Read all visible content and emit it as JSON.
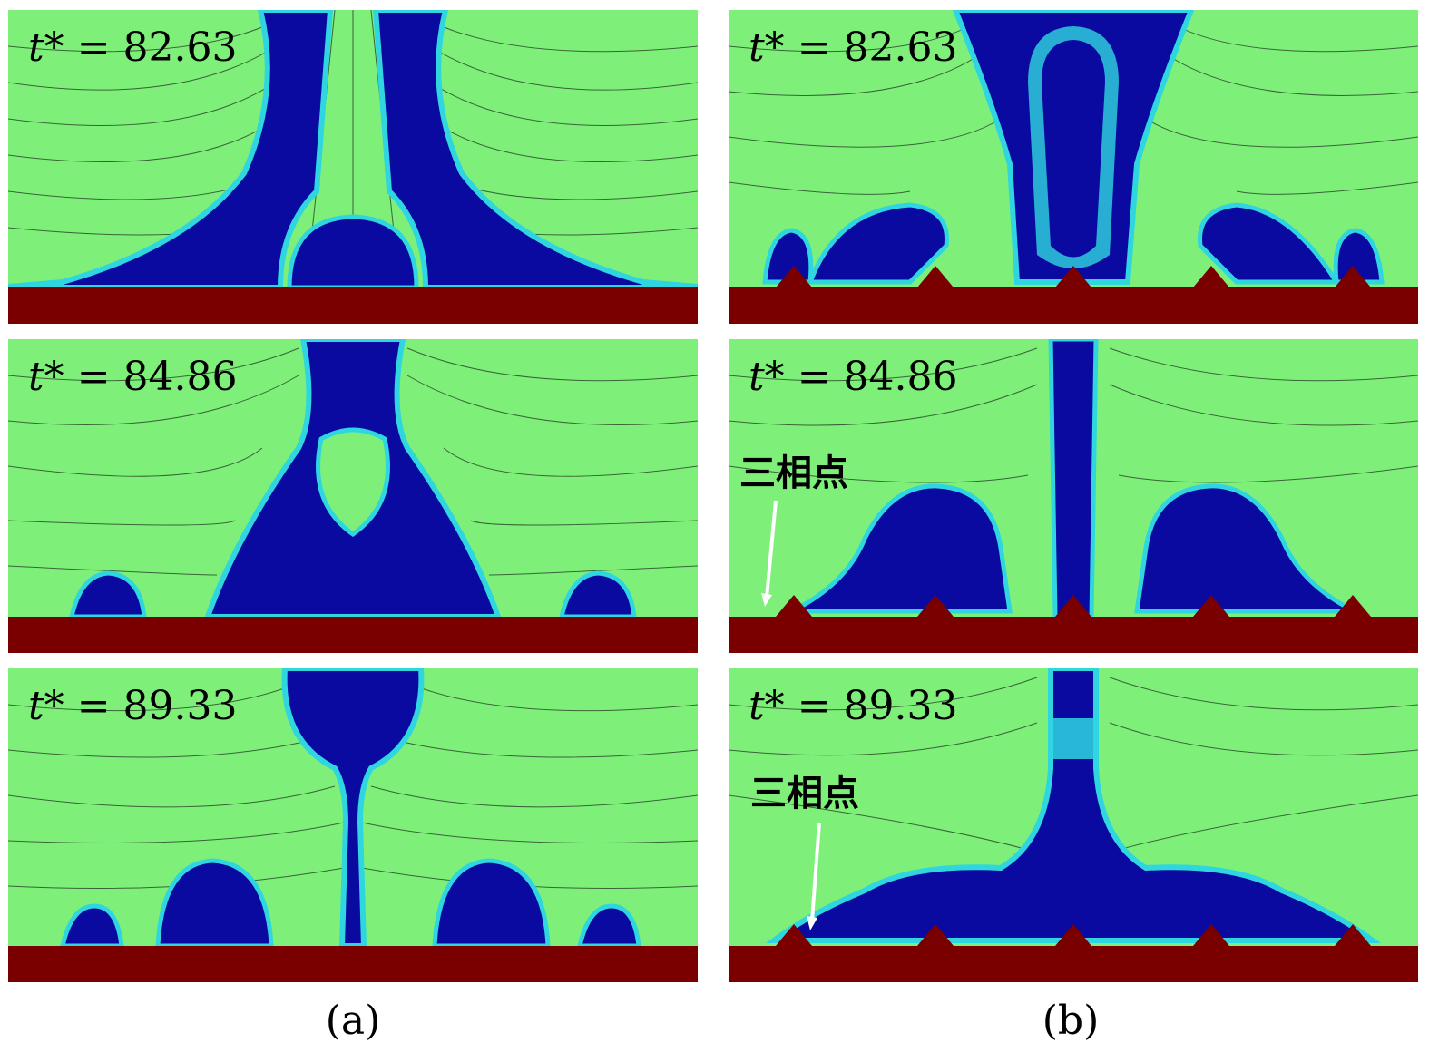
{
  "figure": {
    "columns": [
      {
        "caption": "(a)",
        "panels": [
          {
            "time_label": "t* = 82.63",
            "time_var": "t*",
            "time_value": "= 82.63",
            "annotation": ""
          },
          {
            "time_label": "t* = 84.86",
            "time_var": "t*",
            "time_value": "= 84.86",
            "annotation": ""
          },
          {
            "time_label": "t* = 89.33",
            "time_var": "t*",
            "time_value": "= 89.33",
            "annotation": ""
          }
        ]
      },
      {
        "caption": "(b)",
        "panels": [
          {
            "time_label": "t* = 82.63",
            "time_var": "t*",
            "time_value": "= 82.63",
            "annotation": ""
          },
          {
            "time_label": "t* = 84.86",
            "time_var": "t*",
            "time_value": "= 84.86",
            "annotation": "三相点"
          },
          {
            "time_label": "t* = 89.33",
            "time_var": "t*",
            "time_value": "= 89.33",
            "annotation": "三相点"
          }
        ]
      }
    ]
  },
  "colors": {
    "liquid": "#7ef07a",
    "vapor": "#0a0aa0",
    "interface": "#2fd6e0",
    "wall": "#7a0000",
    "streamline": "#1a2a1a",
    "arrow_annotation": "#ffffff"
  }
}
